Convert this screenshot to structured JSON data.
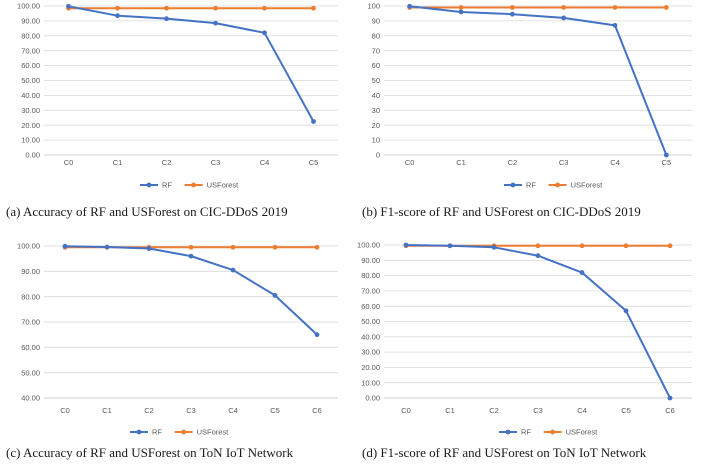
{
  "colors": {
    "rf": "#4472C4",
    "usforest": "#ED7D31",
    "grid": "#d9d9d9",
    "axis": "#bfbfbf"
  },
  "chart_data": [
    {
      "id": "a",
      "type": "line",
      "caption": "(a) Accuracy of RF and USForest on CIC-DDoS 2019",
      "categories": [
        "C0",
        "C1",
        "C2",
        "C3",
        "C4",
        "C5"
      ],
      "ylim": [
        0,
        100
      ],
      "ystep": 10,
      "ytick_decimals": 2,
      "yticks": [
        "0.00",
        "10.00",
        "20.00",
        "30.00",
        "40.00",
        "50.00",
        "60.00",
        "70.00",
        "80.00",
        "90.00",
        "100.00"
      ],
      "series": [
        {
          "name": "RF",
          "values": [
            99.8,
            93.5,
            91.5,
            88.5,
            82.0,
            22.5
          ]
        },
        {
          "name": "USForest",
          "values": [
            98.5,
            98.5,
            98.5,
            98.5,
            98.5,
            98.5
          ]
        }
      ],
      "legend": [
        "RF",
        "USForest"
      ]
    },
    {
      "id": "b",
      "type": "line",
      "caption": "(b) F1-score of RF and USForest on CIC-DDoS 2019",
      "categories": [
        "C0",
        "C1",
        "C2",
        "C3",
        "C4",
        "C5"
      ],
      "ylim": [
        0,
        100
      ],
      "ystep": 10,
      "ytick_decimals": 0,
      "yticks": [
        "0",
        "10",
        "20",
        "30",
        "40",
        "50",
        "60",
        "70",
        "80",
        "90",
        "100"
      ],
      "series": [
        {
          "name": "RF",
          "values": [
            99.8,
            96.0,
            94.5,
            92.0,
            87.0,
            0.0
          ]
        },
        {
          "name": "USForest",
          "values": [
            99.0,
            99.0,
            99.0,
            99.0,
            99.0,
            99.0
          ]
        }
      ],
      "legend": [
        "RF",
        "USForest"
      ]
    },
    {
      "id": "c",
      "type": "line",
      "caption": "(c) Accuracy of RF and USForest on ToN IoT Network",
      "categories": [
        "C0",
        "C1",
        "C2",
        "C3",
        "C4",
        "C5",
        "C6"
      ],
      "ylim": [
        40,
        100
      ],
      "ystep": 10,
      "ytick_decimals": 2,
      "yticks": [
        "40.00",
        "50.00",
        "60.00",
        "70.00",
        "80.00",
        "90.00",
        "100.00"
      ],
      "series": [
        {
          "name": "RF",
          "values": [
            99.9,
            99.6,
            99.0,
            96.0,
            90.5,
            80.5,
            65.0
          ]
        },
        {
          "name": "USForest",
          "values": [
            99.5,
            99.5,
            99.5,
            99.5,
            99.5,
            99.5,
            99.5
          ]
        }
      ],
      "legend": [
        "RF",
        "USForest"
      ]
    },
    {
      "id": "d",
      "type": "line",
      "caption": "(d) F1-score of RF and USForest on ToN IoT Network",
      "categories": [
        "C0",
        "C1",
        "C2",
        "C3",
        "C4",
        "C5",
        "C6"
      ],
      "ylim": [
        0,
        100
      ],
      "ystep": 10,
      "ytick_decimals": 2,
      "yticks": [
        "0.00",
        "10.00",
        "20.00",
        "30.00",
        "40.00",
        "50.00",
        "60.00",
        "70.00",
        "80.00",
        "90.00",
        "100.00"
      ],
      "series": [
        {
          "name": "RF",
          "values": [
            100.0,
            99.5,
            98.5,
            93.0,
            82.0,
            57.0,
            0.0
          ]
        },
        {
          "name": "USForest",
          "values": [
            99.5,
            99.5,
            99.5,
            99.5,
            99.5,
            99.5,
            99.5
          ]
        }
      ],
      "legend": [
        "RF",
        "USForest"
      ]
    }
  ]
}
